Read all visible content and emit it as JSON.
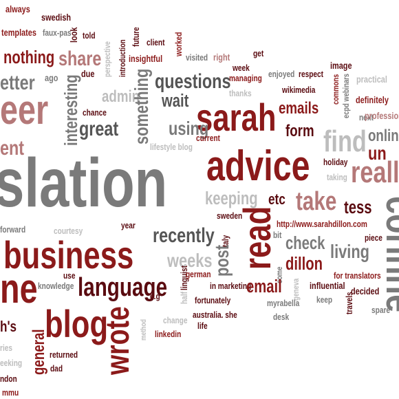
{
  "words": [
    "always",
    "swedish",
    "templates",
    "faux-pas",
    "look",
    "told",
    "future",
    "client",
    "worked",
    "perspective",
    "introduction",
    "nothing",
    "share",
    "insightful",
    "visited",
    "right",
    "get",
    "image",
    "etter",
    "ago",
    "due",
    "week",
    "managing",
    "enjoyed",
    "respect",
    "questions",
    "admin",
    "something",
    "interesting",
    "commons",
    "ecpd webinars",
    "practical",
    "eer",
    "thanks",
    "wikimedia",
    "wait",
    "sarah",
    "emails",
    "definitely",
    "next",
    "profession",
    "chance",
    "great",
    "using",
    "form",
    "current",
    "lifestyle blog",
    "find",
    "onlin",
    "ent",
    "advice",
    "un",
    "slation",
    "holiday",
    "taking",
    "reall",
    "keeping",
    "etc",
    "take",
    "tess",
    "forward",
    "courtesy",
    "year",
    "sweden",
    "recently",
    "italy",
    "read",
    "http://www.sarahdillon.com",
    "piece",
    "corinne",
    "business",
    "weeks",
    "post",
    "bit",
    "check",
    "living",
    "come",
    "dillon",
    "linguist",
    "use",
    "knowledge",
    "language",
    "half",
    "german",
    "in marketing",
    "email",
    "geneva",
    "influential",
    "for translators",
    "ne",
    "fortunately",
    "myrabella",
    "keep",
    "decided",
    "travels",
    "blog",
    "wrote",
    "general",
    "e.g",
    "method",
    "change",
    "australia. she",
    "desk",
    "spare",
    "life",
    "linkedin",
    "h's",
    "returned",
    "dad",
    "ries",
    "eeking",
    "ndon",
    "mmu"
  ]
}
